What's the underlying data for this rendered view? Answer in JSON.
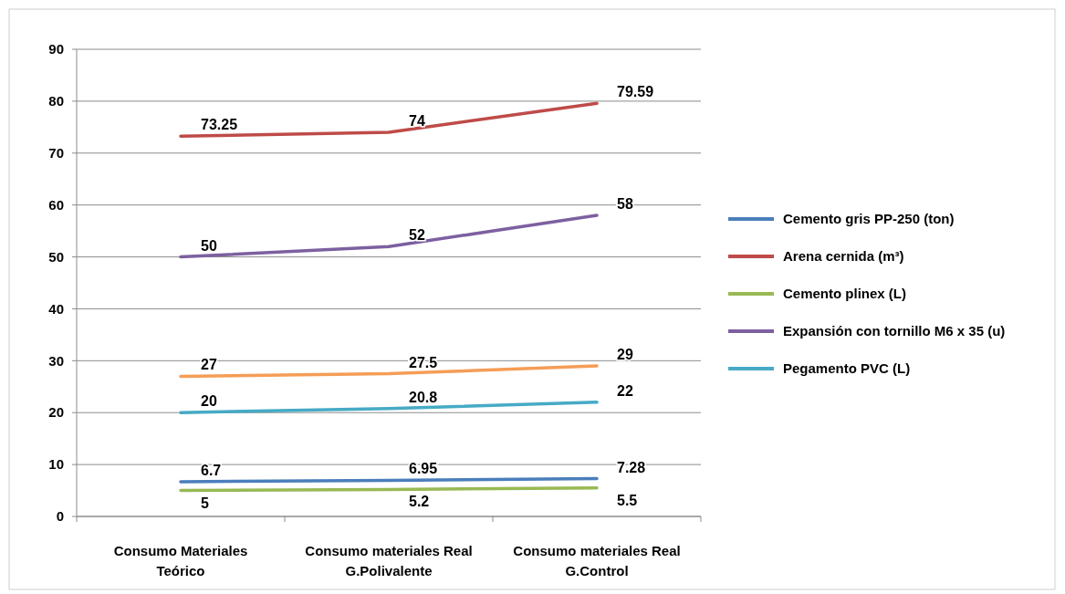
{
  "chart_data": {
    "type": "line",
    "categories": [
      "Consumo Materiales Teórico",
      "Consumo materiales Real G.Polivalente",
      "Consumo materiales Real G.Control"
    ],
    "ylim": [
      0,
      90
    ],
    "yticks": [
      0,
      10,
      20,
      30,
      40,
      50,
      60,
      70,
      80,
      90
    ],
    "grid": "y",
    "legend": "right",
    "data_labels": true,
    "marker": "none",
    "line_style": "solid",
    "series": [
      {
        "name": "Cemento gris PP-250 (ton)",
        "color": "#4a7ebb",
        "values": [
          6.7,
          6.95,
          7.28
        ]
      },
      {
        "name": "Arena cernida (m³)",
        "color": "#be4b48",
        "values": [
          73.25,
          74,
          79.59
        ]
      },
      {
        "name": "Cemento plinex (L)",
        "color": "#98b954",
        "values": [
          5,
          5.2,
          5.5
        ]
      },
      {
        "name": "Expansión con tornillo M6 x 35 (u)",
        "color": "#7d60a0",
        "values": [
          50,
          52,
          58
        ]
      },
      {
        "name": "Pegamento PVC (L)",
        "color": "#46aac5",
        "values": [
          20,
          20.8,
          22
        ]
      },
      {
        "color": "#f59d56",
        "values": [
          27,
          27.5,
          29
        ]
      }
    ]
  }
}
